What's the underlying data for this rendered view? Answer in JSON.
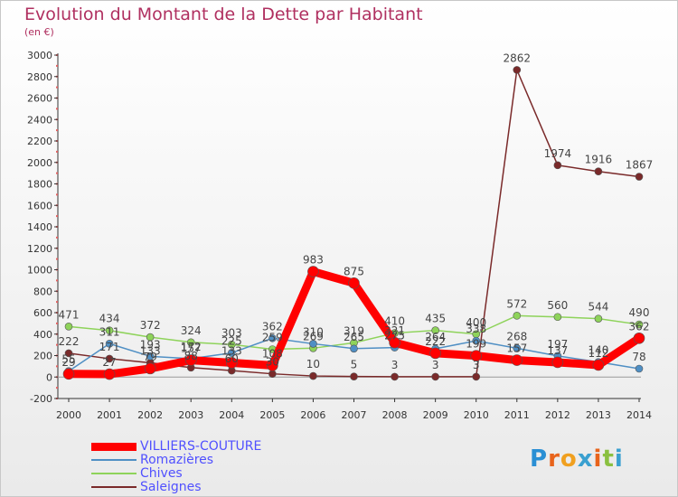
{
  "header": {
    "title": "Evolution du Montant de la Dette par Habitant",
    "subtitle": "(en €)"
  },
  "logo": {
    "letters": [
      "P",
      "r",
      "o",
      "x",
      "i",
      "t",
      "i"
    ]
  },
  "chart_data": {
    "type": "line",
    "title": "Evolution du Montant de la Dette par Habitant",
    "subtitle": "(en €)",
    "x": [
      "2000",
      "2001",
      "2002",
      "2003",
      "2004",
      "2005",
      "2006",
      "2007",
      "2008",
      "2009",
      "2010",
      "2011",
      "2012",
      "2013",
      "2014"
    ],
    "ylim": [
      -200,
      3000
    ],
    "yticks": [
      -200,
      0,
      200,
      400,
      600,
      800,
      1000,
      1200,
      1400,
      1600,
      1800,
      2000,
      2200,
      2400,
      2600,
      2800,
      3000
    ],
    "grid": false,
    "legend_position": "bottom-left",
    "series": [
      {
        "name": "VILLIERS-COUTURE",
        "color": "#ff0000",
        "values": [
          29,
          27,
          79,
          157,
          133,
          108,
          983,
          875,
          321,
          222,
          199,
          157,
          137,
          112,
          362
        ],
        "labels": [
          "29",
          "27",
          "79",
          "157",
          "133",
          "108",
          "983",
          "875",
          "321",
          "222",
          "199",
          "157",
          "137",
          "112",
          "362"
        ]
      },
      {
        "name": "Romazières",
        "color": "#4f8fc4",
        "values": [
          55,
          311,
          193,
          172,
          225,
          362,
          310,
          265,
          275,
          264,
          338,
          268,
          197,
          140,
          78
        ],
        "labels": [
          "55",
          "311",
          "193",
          "172",
          "225",
          "362",
          "310",
          "265",
          "275",
          "264",
          "338",
          "268",
          "197",
          "140",
          "78"
        ]
      },
      {
        "name": "Chives",
        "color": "#8ed35a",
        "values": [
          471,
          434,
          372,
          324,
          303,
          259,
          269,
          319,
          410,
          435,
          400,
          572,
          560,
          544,
          490
        ],
        "labels": [
          "471",
          "434",
          "372",
          "324",
          "303",
          "259",
          "269",
          "319",
          "410",
          "435",
          "400",
          "572",
          "560",
          "544",
          "490"
        ]
      },
      {
        "name": "Saleignes",
        "color": "#7a2a2a",
        "values": [
          222,
          171,
          133,
          88,
          60,
          30,
          10,
          5,
          3,
          3,
          3,
          2862,
          1974,
          1916,
          1867
        ],
        "labels": [
          "222",
          "171",
          "133",
          "88",
          "60",
          "30",
          "10",
          "5",
          "3",
          "3",
          "3",
          "2862",
          "1974",
          "1916",
          "1867"
        ]
      }
    ]
  }
}
